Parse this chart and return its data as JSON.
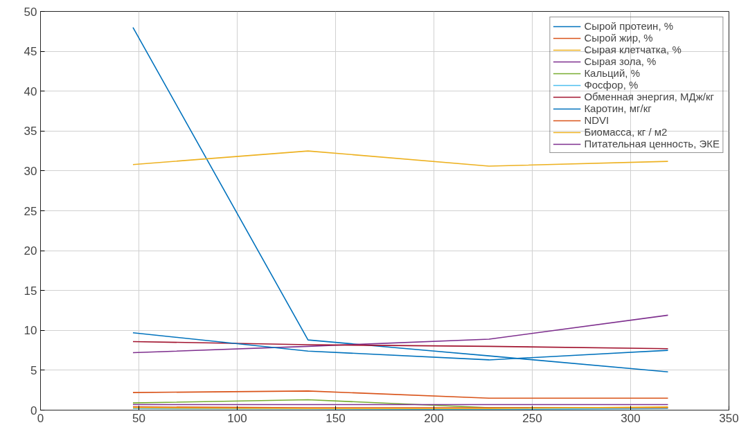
{
  "chart_data": {
    "type": "line",
    "x": [
      47,
      136,
      228,
      319
    ],
    "series": [
      {
        "name": "Сырой протеин, %",
        "color": "#0072bd",
        "values": [
          48,
          8.8,
          6.8,
          4.8
        ]
      },
      {
        "name": "Сырой жир, %",
        "color": "#d95319",
        "values": [
          2.2,
          2.4,
          1.5,
          1.5
        ]
      },
      {
        "name": "Сырая клетчатка, %",
        "color": "#edb120",
        "values": [
          30.8,
          32.5,
          30.6,
          31.2
        ]
      },
      {
        "name": "Сырая зола, %",
        "color": "#7e2f8e",
        "values": [
          7.2,
          8.0,
          8.9,
          11.9
        ]
      },
      {
        "name": "Кальций, %",
        "color": "#77ac30",
        "values": [
          0.9,
          1.3,
          0.3,
          0.3
        ]
      },
      {
        "name": "Фосфор, %",
        "color": "#4dbeee",
        "values": [
          0.2,
          0.15,
          0.1,
          0.2
        ]
      },
      {
        "name": "Обменная энергия, МДж/кг",
        "color": "#a2142f",
        "values": [
          8.6,
          8.2,
          8.0,
          7.7
        ]
      },
      {
        "name": "Каротин, мг/кг",
        "color": "#0072bd",
        "values": [
          9.7,
          7.4,
          6.3,
          7.5
        ]
      },
      {
        "name": "NDVI",
        "color": "#d95319",
        "values": [
          0.4,
          0.3,
          0.3,
          0.3
        ]
      },
      {
        "name": "Биомасса, кг / м2",
        "color": "#edb120",
        "values": [
          0.3,
          0.2,
          0.2,
          0.4
        ]
      },
      {
        "name": "Питательная ценность, ЭКЕ",
        "color": "#7e2f8e",
        "values": [
          0.7,
          0.7,
          0.7,
          0.7
        ]
      }
    ],
    "xlim": [
      0,
      350
    ],
    "xticks": [
      0,
      50,
      100,
      150,
      200,
      250,
      300,
      350
    ],
    "ylim": [
      0,
      50
    ],
    "yticks": [
      0,
      5,
      10,
      15,
      20,
      25,
      30,
      35,
      40,
      45,
      50
    ],
    "grid": true,
    "legend": "top right",
    "line_style": "solid",
    "marker": "none"
  }
}
